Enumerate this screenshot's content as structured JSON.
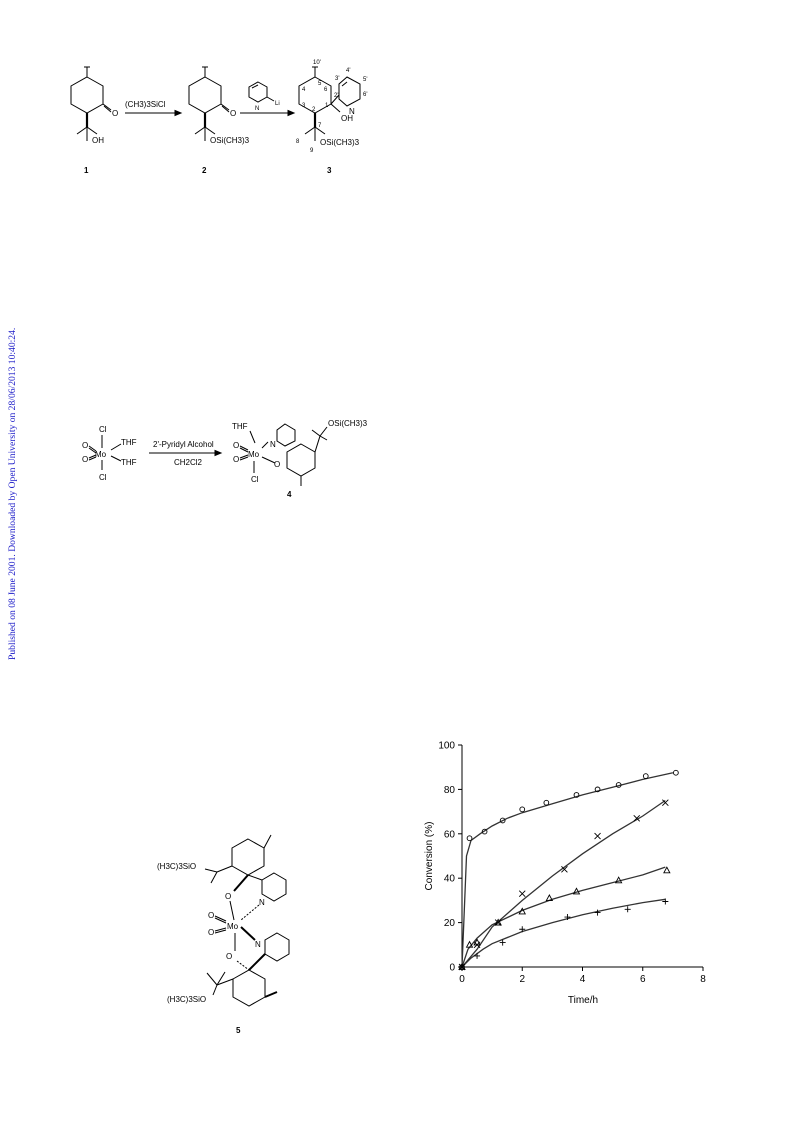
{
  "sidebar_note": "Published on 08 June 2001. Downloaded by Open University on 28/06/2013 10:40:24.",
  "scheme1": {
    "reagent1": "(CH3)3SiCl",
    "compound_labels": [
      "1",
      "2",
      "3"
    ],
    "oh": "OH",
    "ketone_o": "O",
    "silyl_ether": "OSi(CH3)3",
    "li": "Li",
    "n": "N",
    "numbering": [
      "10'",
      "5",
      "4",
      "3",
      "2",
      "6",
      "1",
      "2'",
      "3'",
      "4'",
      "5'",
      "6'",
      "7",
      "8",
      "9"
    ]
  },
  "scheme2": {
    "reagent_top": "2'-Pyridyl Alcohol",
    "reagent_bottom": "CH2Cl2",
    "cl": "Cl",
    "thf": "THF",
    "mo": "Mo",
    "o": "O",
    "n": "N",
    "silyl_ether": "OSi(CH3)3",
    "compound_label": "4"
  },
  "structure5": {
    "top_group": "(H3C)3SiO",
    "bottom_group": "(H3C)3SiO",
    "mo": "Mo",
    "o": "O",
    "n": "N",
    "compound_label": "5"
  },
  "chart_data": {
    "type": "scatter",
    "xlabel": "Time/h",
    "ylabel": "Conversion (%)",
    "xlim": [
      0,
      8
    ],
    "ylim": [
      0,
      100
    ],
    "xticks": [
      0,
      2,
      4,
      6,
      8
    ],
    "yticks": [
      0,
      20,
      40,
      60,
      80,
      100
    ],
    "grid": false,
    "series": [
      {
        "marker": "circle",
        "x": [
          0,
          0.25,
          0.75,
          1.35,
          2.0,
          2.8,
          3.8,
          4.5,
          5.2,
          6.1,
          7.1
        ],
        "y": [
          0,
          58,
          61,
          66,
          71,
          74,
          77.5,
          80,
          82,
          86,
          87.5
        ],
        "fit": [
          [
            0,
            0
          ],
          [
            0.15,
            50
          ],
          [
            0.3,
            57
          ],
          [
            0.6,
            60
          ],
          [
            1,
            63.5
          ],
          [
            1.5,
            67
          ],
          [
            2,
            69.5
          ],
          [
            3,
            73.5
          ],
          [
            4,
            77.5
          ],
          [
            5,
            81
          ],
          [
            6,
            84.5
          ],
          [
            7,
            87.5
          ]
        ]
      },
      {
        "marker": "x",
        "x": [
          0,
          0.5,
          1.2,
          2.0,
          3.4,
          4.5,
          5.8,
          6.75
        ],
        "y": [
          0,
          10,
          20,
          33,
          44,
          59,
          67,
          74
        ],
        "fit": [
          [
            0,
            0
          ],
          [
            0.5,
            8
          ],
          [
            1,
            18
          ],
          [
            2,
            30
          ],
          [
            3,
            41
          ],
          [
            4,
            51
          ],
          [
            5,
            60
          ],
          [
            6,
            68
          ],
          [
            6.75,
            75
          ]
        ]
      },
      {
        "marker": "triangle",
        "x": [
          0,
          0.25,
          0.5,
          1.2,
          2.0,
          2.9,
          3.8,
          5.2,
          6.8
        ],
        "y": [
          0,
          10,
          11,
          20,
          25,
          31,
          34,
          39,
          43.5
        ],
        "fit": [
          [
            0,
            0
          ],
          [
            0.2,
            8
          ],
          [
            0.5,
            13
          ],
          [
            1,
            19
          ],
          [
            2,
            25.5
          ],
          [
            3,
            30.5
          ],
          [
            4,
            34.5
          ],
          [
            5,
            38
          ],
          [
            6,
            41.5
          ],
          [
            6.75,
            45
          ]
        ]
      },
      {
        "marker": "plus",
        "x": [
          0,
          0.5,
          1.35,
          2.0,
          3.5,
          4.5,
          5.5,
          6.75
        ],
        "y": [
          0,
          5,
          11,
          17,
          22.5,
          24.5,
          26,
          29.5
        ],
        "fit": [
          [
            0,
            0
          ],
          [
            0.3,
            4
          ],
          [
            0.7,
            8
          ],
          [
            1,
            10.5
          ],
          [
            2,
            16
          ],
          [
            3,
            20
          ],
          [
            4,
            23.5
          ],
          [
            5,
            26.5
          ],
          [
            6,
            29
          ],
          [
            6.75,
            30.5
          ]
        ]
      }
    ]
  }
}
